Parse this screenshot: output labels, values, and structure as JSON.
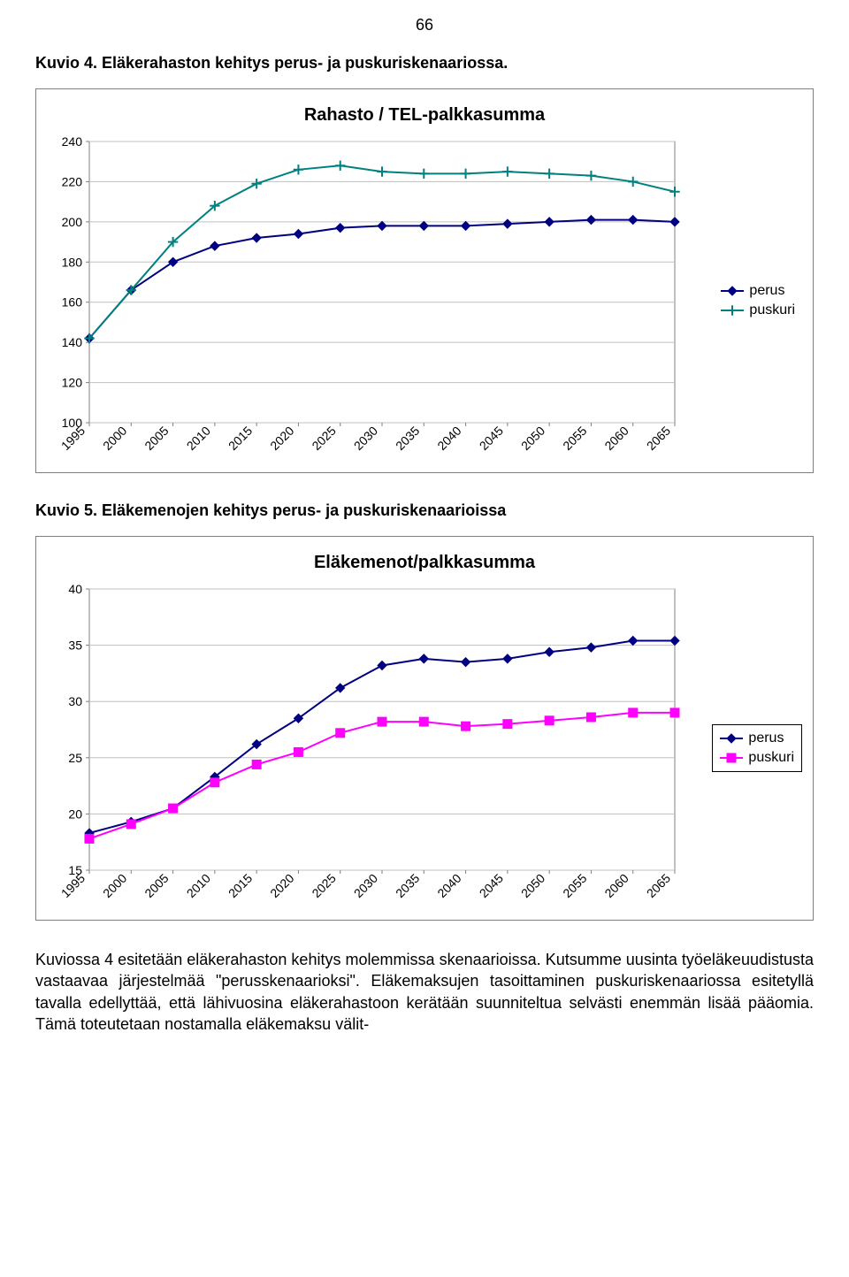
{
  "page_number": "66",
  "caption1": "Kuvio 4. Eläkerahaston kehitys perus- ja puskuriskenaariossa.",
  "caption2": "Kuvio 5. Eläkemenojen kehitys perus- ja puskuriskenaarioissa",
  "chart1": {
    "title": "Rahasto / TEL-palkkasumma",
    "type": "line",
    "x": [
      1995,
      2000,
      2005,
      2010,
      2015,
      2020,
      2025,
      2030,
      2035,
      2040,
      2045,
      2050,
      2055,
      2060,
      2065
    ],
    "series": [
      {
        "name": "perus",
        "label": "perus",
        "color": "#000080",
        "marker": "diamond",
        "marker_size": 7,
        "y": [
          142,
          166,
          180,
          188,
          192,
          194,
          197,
          198,
          198,
          198,
          199,
          200,
          201,
          201,
          200
        ]
      },
      {
        "name": "puskuri",
        "label": "puskuri",
        "color": "#008080",
        "marker": "plus",
        "marker_size": 8,
        "y": [
          142,
          166,
          190,
          208,
          219,
          226,
          228,
          225,
          224,
          224,
          225,
          224,
          223,
          220,
          215
        ]
      }
    ],
    "ylim": [
      100,
      240
    ],
    "ytick_step": 20,
    "xlim": [
      1995,
      2065
    ],
    "xtick_step": 5,
    "background_color": "#ffffff",
    "grid_color": "#c0c0c0",
    "axis_color": "#808080",
    "line_width": 2,
    "legend_position": "right",
    "legend_border": false,
    "label_fontsize": 14,
    "title_fontsize": 20
  },
  "chart2": {
    "title": "Eläkemenot/palkkasumma",
    "type": "line",
    "x": [
      1995,
      2000,
      2005,
      2010,
      2015,
      2020,
      2025,
      2030,
      2035,
      2040,
      2045,
      2050,
      2055,
      2060,
      2065
    ],
    "series": [
      {
        "name": "perus",
        "label": "perus",
        "color": "#000080",
        "marker": "diamond",
        "marker_size": 7,
        "y": [
          18.3,
          19.3,
          20.5,
          23.3,
          26.2,
          28.5,
          31.2,
          33.2,
          33.8,
          33.5,
          33.8,
          34.4,
          34.8,
          35.4,
          35.4
        ]
      },
      {
        "name": "puskuri",
        "label": "puskuri",
        "color": "#ff00ff",
        "marker": "square",
        "marker_size": 7,
        "y": [
          17.8,
          19.1,
          20.5,
          22.8,
          24.4,
          25.5,
          27.2,
          28.2,
          28.2,
          27.8,
          28.0,
          28.3,
          28.6,
          29.0,
          29.0
        ]
      }
    ],
    "ylim": [
      15,
      40
    ],
    "ytick_step": 5,
    "xlim": [
      1995,
      2065
    ],
    "xtick_step": 5,
    "background_color": "#ffffff",
    "grid_color": "#c0c0c0",
    "axis_color": "#808080",
    "line_width": 2,
    "legend_position": "right",
    "legend_border": true,
    "label_fontsize": 14,
    "title_fontsize": 20
  },
  "body_text": "Kuviossa 4 esitetään eläkerahaston kehitys molemmissa skenaarioissa. Kutsumme uusinta työeläkeuudistusta vastaavaa järjestelmää \"perusskenaarioksi\". Eläkemaksujen tasoittaminen puskuriskenaariossa esitetyllä tavalla edellyttää, että lähivuosina eläkerahastoon kerätään suunniteltua selvästi enemmän lisää pääomia. Tämä toteutetaan nostamalla eläkemaksu välit-"
}
